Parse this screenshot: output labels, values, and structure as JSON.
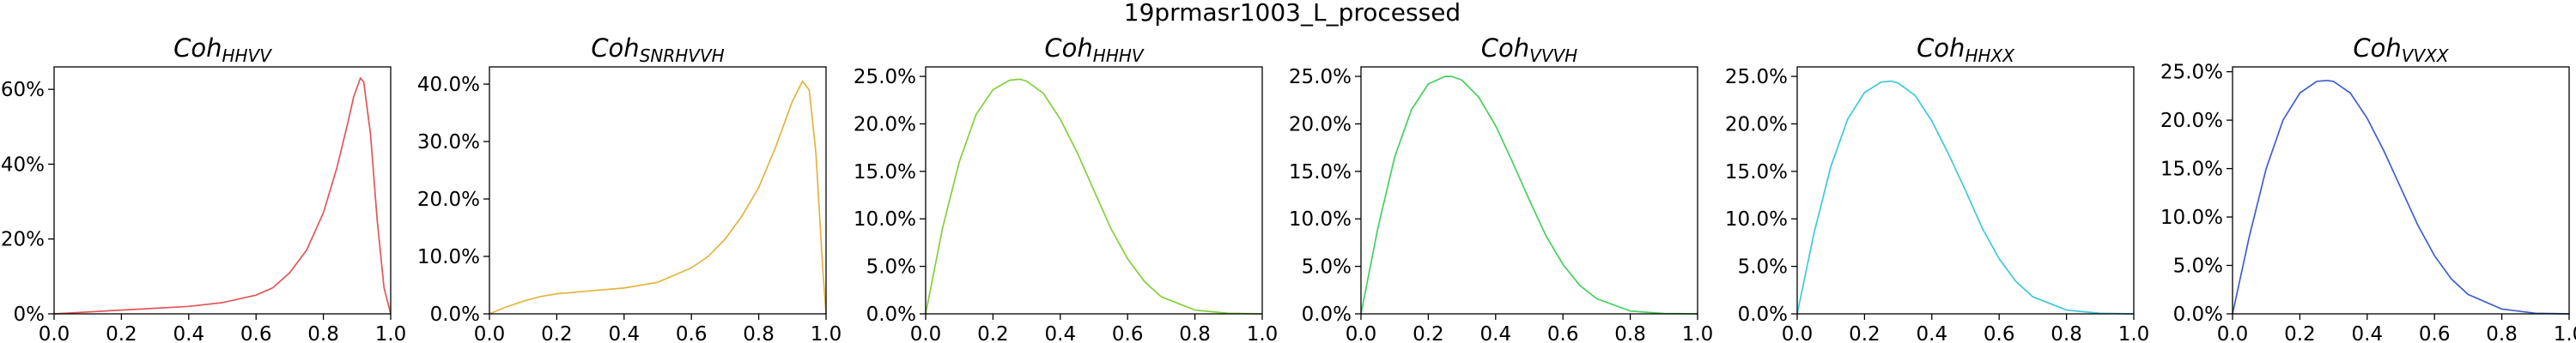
{
  "figure_title": "19prmasr1003_L_processed",
  "chart_data": [
    {
      "type": "line",
      "title_main": "Coh",
      "title_sub": "HHVV",
      "color": "#e15759",
      "xlim": [
        0.0,
        1.0
      ],
      "ylim": [
        0,
        0.66
      ],
      "xticks": [
        0.0,
        0.2,
        0.4,
        0.6,
        0.8,
        1.0
      ],
      "xtick_labels": [
        "0.0",
        "0.2",
        "0.4",
        "0.6",
        "0.8",
        "1.0"
      ],
      "yticks": [
        0,
        0.2,
        0.4,
        0.6
      ],
      "ytick_labels": [
        "0%",
        "20%",
        "40%",
        "60%"
      ],
      "x": [
        0.0,
        0.1,
        0.2,
        0.3,
        0.4,
        0.5,
        0.6,
        0.65,
        0.7,
        0.75,
        0.8,
        0.84,
        0.87,
        0.89,
        0.91,
        0.92,
        0.94,
        0.96,
        0.98,
        1.0
      ],
      "y": [
        0.0,
        0.005,
        0.01,
        0.015,
        0.02,
        0.03,
        0.05,
        0.07,
        0.11,
        0.17,
        0.27,
        0.39,
        0.5,
        0.58,
        0.63,
        0.62,
        0.48,
        0.25,
        0.07,
        0.0
      ]
    },
    {
      "type": "line",
      "title_main": "Coh",
      "title_sub": "SNRHVVH",
      "color": "#e4b441",
      "xlim": [
        0.0,
        1.0
      ],
      "ylim": [
        0,
        0.43
      ],
      "xticks": [
        0.0,
        0.2,
        0.4,
        0.6,
        0.8,
        1.0
      ],
      "xtick_labels": [
        "0.0",
        "0.2",
        "0.4",
        "0.6",
        "0.8",
        "1.0"
      ],
      "yticks": [
        0,
        0.1,
        0.2,
        0.3,
        0.4
      ],
      "ytick_labels": [
        "0.0%",
        "10.0%",
        "20.0%",
        "30.0%",
        "40.0%"
      ],
      "x": [
        0.0,
        0.05,
        0.1,
        0.15,
        0.2,
        0.3,
        0.4,
        0.5,
        0.6,
        0.65,
        0.7,
        0.75,
        0.8,
        0.85,
        0.9,
        0.93,
        0.95,
        0.97,
        0.99,
        1.0
      ],
      "y": [
        0.0,
        0.012,
        0.022,
        0.03,
        0.035,
        0.04,
        0.045,
        0.055,
        0.08,
        0.1,
        0.13,
        0.17,
        0.22,
        0.29,
        0.37,
        0.405,
        0.39,
        0.28,
        0.08,
        0.0
      ]
    },
    {
      "type": "line",
      "title_main": "Coh",
      "title_sub": "HHHV",
      "color": "#82d13a",
      "xlim": [
        0.0,
        1.0
      ],
      "ylim": [
        0,
        0.26
      ],
      "xticks": [
        0.0,
        0.2,
        0.4,
        0.6,
        0.8,
        1.0
      ],
      "xtick_labels": [
        "0.0",
        "0.2",
        "0.4",
        "0.6",
        "0.8",
        "1.0"
      ],
      "yticks": [
        0,
        0.05,
        0.1,
        0.15,
        0.2,
        0.25
      ],
      "ytick_labels": [
        "0.0%",
        "5.0%",
        "10.0%",
        "15.0%",
        "20.0%",
        "25.0%"
      ],
      "x": [
        0.0,
        0.05,
        0.1,
        0.15,
        0.2,
        0.25,
        0.28,
        0.3,
        0.35,
        0.4,
        0.45,
        0.5,
        0.55,
        0.6,
        0.65,
        0.7,
        0.8,
        0.9,
        1.0
      ],
      "y": [
        0.0,
        0.09,
        0.16,
        0.21,
        0.236,
        0.246,
        0.247,
        0.245,
        0.232,
        0.205,
        0.17,
        0.13,
        0.09,
        0.058,
        0.034,
        0.018,
        0.004,
        0.0005,
        0.0
      ]
    },
    {
      "type": "line",
      "title_main": "Coh",
      "title_sub": "VVVH",
      "color": "#45d05f",
      "xlim": [
        0.0,
        1.0
      ],
      "ylim": [
        0,
        0.26
      ],
      "xticks": [
        0.0,
        0.2,
        0.4,
        0.6,
        0.8,
        1.0
      ],
      "xtick_labels": [
        "0.0",
        "0.2",
        "0.4",
        "0.6",
        "0.8",
        "1.0"
      ],
      "yticks": [
        0,
        0.05,
        0.1,
        0.15,
        0.2,
        0.25
      ],
      "ytick_labels": [
        "0.0%",
        "5.0%",
        "10.0%",
        "15.0%",
        "20.0%",
        "25.0%"
      ],
      "x": [
        0.0,
        0.05,
        0.1,
        0.15,
        0.2,
        0.25,
        0.27,
        0.3,
        0.35,
        0.4,
        0.45,
        0.5,
        0.55,
        0.6,
        0.65,
        0.7,
        0.8,
        0.9,
        1.0
      ],
      "y": [
        0.0,
        0.09,
        0.165,
        0.215,
        0.242,
        0.25,
        0.25,
        0.246,
        0.228,
        0.198,
        0.16,
        0.12,
        0.082,
        0.052,
        0.03,
        0.016,
        0.003,
        0.0004,
        0.0
      ]
    },
    {
      "type": "line",
      "title_main": "Coh",
      "title_sub": "HHXX",
      "color": "#3ecad8",
      "xlim": [
        0.0,
        1.0
      ],
      "ylim": [
        0,
        0.26
      ],
      "xticks": [
        0.0,
        0.2,
        0.4,
        0.6,
        0.8,
        1.0
      ],
      "xtick_labels": [
        "0.0",
        "0.2",
        "0.4",
        "0.6",
        "0.8",
        "1.0"
      ],
      "yticks": [
        0,
        0.05,
        0.1,
        0.15,
        0.2,
        0.25
      ],
      "ytick_labels": [
        "0.0%",
        "5.0%",
        "10.0%",
        "15.0%",
        "20.0%",
        "25.0%"
      ],
      "x": [
        0.0,
        0.05,
        0.1,
        0.15,
        0.2,
        0.25,
        0.28,
        0.3,
        0.35,
        0.4,
        0.45,
        0.5,
        0.55,
        0.6,
        0.65,
        0.7,
        0.8,
        0.9,
        1.0
      ],
      "y": [
        0.0,
        0.085,
        0.155,
        0.205,
        0.233,
        0.244,
        0.245,
        0.243,
        0.23,
        0.203,
        0.168,
        0.13,
        0.09,
        0.058,
        0.034,
        0.018,
        0.004,
        0.0005,
        0.0
      ]
    },
    {
      "type": "line",
      "title_main": "Coh",
      "title_sub": "VVXX",
      "color": "#3f5fcf",
      "xlim": [
        0.0,
        1.0
      ],
      "ylim": [
        0,
        0.255
      ],
      "xticks": [
        0.0,
        0.2,
        0.4,
        0.6,
        0.8,
        1.0
      ],
      "xtick_labels": [
        "0.0",
        "0.2",
        "0.4",
        "0.6",
        "0.8",
        "1.0"
      ],
      "yticks": [
        0,
        0.05,
        0.1,
        0.15,
        0.2,
        0.25
      ],
      "ytick_labels": [
        "0.0%",
        "5.0%",
        "10.0%",
        "15.0%",
        "20.0%",
        "25.0%"
      ],
      "x": [
        0.0,
        0.05,
        0.1,
        0.15,
        0.2,
        0.25,
        0.28,
        0.3,
        0.35,
        0.4,
        0.45,
        0.5,
        0.55,
        0.6,
        0.65,
        0.7,
        0.8,
        0.9,
        1.0
      ],
      "y": [
        0.0,
        0.08,
        0.15,
        0.2,
        0.228,
        0.24,
        0.241,
        0.24,
        0.228,
        0.202,
        0.168,
        0.13,
        0.092,
        0.06,
        0.036,
        0.02,
        0.005,
        0.0006,
        0.0
      ]
    }
  ]
}
